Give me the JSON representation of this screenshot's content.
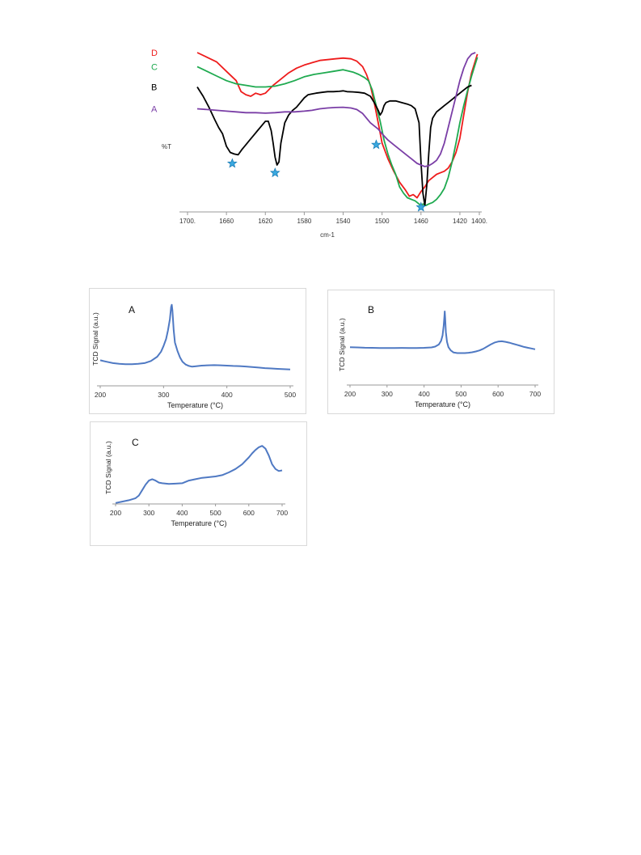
{
  "chart_data": [
    {
      "type": "line",
      "xlabel": "cm-1",
      "ylabel": "%T",
      "xlim": [
        1700,
        1400
      ],
      "x_ticks": [
        "1700.",
        "1660",
        "1620",
        "1580",
        "1540",
        "1500",
        "1460",
        "1420",
        "1400."
      ],
      "x_tick_values": [
        1700,
        1660,
        1620,
        1580,
        1540,
        1500,
        1460,
        1420,
        1400
      ],
      "y_range": [
        0,
        100
      ],
      "grid": false,
      "legend": "left labels",
      "series": [
        {
          "name": "D",
          "color": "#ee1c1c",
          "x": [
            1690,
            1680,
            1670,
            1660,
            1650,
            1645,
            1640,
            1635,
            1630,
            1625,
            1620,
            1612,
            1604,
            1596,
            1588,
            1580,
            1572,
            1564,
            1556,
            1548,
            1540,
            1532,
            1526,
            1520,
            1516,
            1512,
            1508,
            1504,
            1500,
            1494,
            1488,
            1482,
            1476,
            1472,
            1468,
            1464,
            1460,
            1456,
            1452,
            1448,
            1444,
            1440,
            1436,
            1432,
            1428,
            1424,
            1420,
            1416,
            1412,
            1408,
            1404,
            1402
          ],
          "y": [
            100,
            97,
            94,
            88,
            82,
            75,
            73,
            72,
            74,
            73,
            74,
            79,
            83,
            87,
            90,
            92,
            93.5,
            95,
            95.5,
            96,
            96.5,
            96,
            94.5,
            91,
            86,
            79,
            68,
            55,
            42,
            32,
            24,
            17,
            12,
            8,
            9,
            7,
            11,
            14,
            18,
            20,
            22,
            23,
            24,
            26,
            30,
            36,
            45,
            60,
            75,
            87,
            95,
            99
          ]
        },
        {
          "name": "C",
          "color": "#1faa50",
          "x": [
            1690,
            1680,
            1670,
            1660,
            1650,
            1640,
            1630,
            1620,
            1610,
            1600,
            1590,
            1580,
            1570,
            1560,
            1550,
            1540,
            1530,
            1524,
            1518,
            1514,
            1510,
            1506,
            1502,
            1498,
            1494,
            1490,
            1486,
            1482,
            1478,
            1474,
            1470,
            1466,
            1462,
            1460,
            1458,
            1455,
            1452,
            1448,
            1444,
            1440,
            1436,
            1432,
            1428,
            1424,
            1420,
            1416,
            1412,
            1408,
            1404,
            1402
          ],
          "y": [
            91,
            88,
            85,
            82,
            80,
            79,
            78,
            78,
            78.5,
            80,
            82,
            84.5,
            86,
            87,
            88,
            89,
            87.5,
            86,
            84,
            82,
            76,
            66,
            56,
            44,
            35,
            28,
            22,
            14,
            10,
            7,
            6,
            5,
            3,
            2,
            3,
            2,
            3,
            4,
            6,
            9,
            13,
            20,
            30,
            42,
            55,
            66,
            76,
            85,
            93,
            97
          ]
        },
        {
          "name": "B",
          "color": "#000000",
          "x": [
            1690,
            1684,
            1678,
            1672,
            1668,
            1664,
            1660,
            1656,
            1652,
            1648,
            1644,
            1640,
            1636,
            1632,
            1628,
            1624,
            1620,
            1617,
            1614,
            1612,
            1610,
            1608,
            1606,
            1604,
            1600,
            1596,
            1592,
            1588,
            1584,
            1580,
            1576,
            1572,
            1568,
            1562,
            1556,
            1550,
            1544,
            1540,
            1536,
            1530,
            1524,
            1518,
            1512,
            1508,
            1504,
            1502,
            1500,
            1498,
            1496,
            1492,
            1486,
            1480,
            1474,
            1470,
            1466,
            1462,
            1460,
            1458,
            1456,
            1454,
            1452,
            1450,
            1448,
            1446,
            1444,
            1440,
            1436,
            1432,
            1428,
            1424,
            1420,
            1416,
            1412,
            1408
          ],
          "y": [
            78,
            72,
            65,
            57,
            52,
            48,
            40,
            36,
            35,
            34.5,
            38,
            41,
            44,
            47,
            50,
            53,
            56,
            56,
            50,
            42,
            33,
            28,
            30,
            42,
            55,
            60,
            63,
            65,
            68,
            71,
            73,
            73.5,
            74,
            74.5,
            75,
            75,
            75.2,
            75.5,
            75,
            74.8,
            74.5,
            74,
            72,
            68,
            63,
            60,
            62,
            66,
            68,
            69,
            69,
            68,
            67,
            66,
            64,
            55,
            30,
            10,
            2,
            15,
            35,
            52,
            58,
            60,
            62,
            64,
            66,
            68,
            70,
            72,
            74,
            76,
            78,
            79
          ]
        },
        {
          "name": "A",
          "color": "#7a3ea6",
          "x": [
            1690,
            1680,
            1670,
            1660,
            1650,
            1640,
            1630,
            1620,
            1610,
            1600,
            1590,
            1580,
            1572,
            1564,
            1556,
            1548,
            1540,
            1532,
            1526,
            1520,
            1516,
            1512,
            1508,
            1504,
            1500,
            1494,
            1488,
            1482,
            1476,
            1470,
            1464,
            1460,
            1456,
            1452,
            1448,
            1444,
            1440,
            1436,
            1432,
            1428,
            1424,
            1420,
            1416,
            1412,
            1408,
            1404
          ],
          "y": [
            64,
            63.5,
            63,
            62.5,
            62,
            61.5,
            61.5,
            61.2,
            61.5,
            62,
            62,
            62.5,
            63,
            64,
            64.5,
            64.8,
            65,
            64.5,
            63.5,
            61,
            58,
            55,
            53,
            51,
            48,
            44,
            41,
            38,
            35,
            32,
            29,
            28,
            27,
            27.5,
            29,
            31,
            35,
            42,
            52,
            62,
            72,
            82,
            90,
            96,
            99,
            100
          ]
        }
      ],
      "annotations": {
        "star_markers_x": [
          1654,
          1610,
          1506,
          1460
        ]
      }
    },
    {
      "type": "line",
      "panel_label": "A",
      "xlabel": "Temperature (°C)",
      "ylabel": "TCD Signal (a.u.)",
      "xlim": [
        200,
        500
      ],
      "x_ticks": [
        "200",
        "300",
        "400",
        "500"
      ],
      "x_tick_values": [
        200,
        300,
        400,
        500
      ],
      "y_range": [
        0,
        100
      ],
      "series": [
        {
          "name": "",
          "color": "#4f79c3",
          "x": [
            200,
            210,
            220,
            230,
            240,
            250,
            260,
            270,
            280,
            290,
            296,
            300,
            304,
            307,
            310,
            312,
            313,
            314,
            316,
            318,
            322,
            326,
            330,
            335,
            340,
            345,
            350,
            360,
            370,
            380,
            390,
            400,
            410,
            420,
            430,
            440,
            450,
            460,
            470,
            480,
            490,
            500
          ],
          "y": [
            20,
            18,
            16,
            15,
            14.5,
            14.5,
            15,
            16,
            19,
            25,
            32,
            40,
            50,
            62,
            78,
            95,
            98,
            90,
            62,
            45,
            33,
            24,
            18,
            14,
            12,
            11,
            11.5,
            12.5,
            13,
            13.2,
            13,
            12.5,
            12,
            11.8,
            11.2,
            10.5,
            9.8,
            9,
            8.5,
            8,
            7.5,
            7
          ]
        }
      ]
    },
    {
      "type": "line",
      "panel_label": "B",
      "xlabel": "Temperature (°C)",
      "ylabel": "TCD Signal (a.u.)",
      "xlim": [
        200,
        700
      ],
      "x_ticks": [
        "200",
        "300",
        "400",
        "500",
        "600",
        "700"
      ],
      "x_tick_values": [
        200,
        300,
        400,
        500,
        600,
        700
      ],
      "y_range": [
        0,
        100
      ],
      "series": [
        {
          "name": "",
          "color": "#4f79c3",
          "x": [
            200,
            220,
            240,
            260,
            280,
            300,
            320,
            340,
            360,
            380,
            400,
            420,
            430,
            440,
            446,
            450,
            453,
            455,
            456,
            457,
            459,
            462,
            466,
            472,
            480,
            490,
            500,
            510,
            520,
            530,
            540,
            550,
            560,
            570,
            580,
            590,
            600,
            610,
            620,
            630,
            640,
            650,
            660,
            670,
            680,
            690,
            700
          ],
          "y": [
            30,
            29.5,
            29,
            28.8,
            28.5,
            28.4,
            28.5,
            28.6,
            28.5,
            28.5,
            28.8,
            29.5,
            31,
            35,
            42,
            52,
            70,
            88,
            97,
            85,
            58,
            40,
            30,
            24,
            20,
            19,
            19,
            19,
            19.5,
            20.5,
            22,
            24,
            27,
            31,
            35,
            38.5,
            40.5,
            41,
            40,
            38.5,
            36.5,
            34.5,
            32.5,
            30.5,
            29,
            27.5,
            26
          ]
        }
      ]
    },
    {
      "type": "line",
      "panel_label": "C",
      "xlabel": "Temperature (°C)",
      "ylabel": "TCD Signal (a.u.)",
      "xlim": [
        200,
        700
      ],
      "x_ticks": [
        "200",
        "300",
        "400",
        "500",
        "600",
        "700"
      ],
      "x_tick_values": [
        200,
        300,
        400,
        500,
        600,
        700
      ],
      "y_range": [
        0,
        100
      ],
      "series": [
        {
          "name": "",
          "color": "#4f79c3",
          "x": [
            200,
            220,
            240,
            260,
            270,
            280,
            290,
            300,
            310,
            320,
            330,
            340,
            360,
            380,
            400,
            420,
            440,
            460,
            480,
            500,
            520,
            540,
            560,
            580,
            600,
            610,
            620,
            630,
            640,
            650,
            660,
            670,
            680,
            690,
            700
          ],
          "y": [
            5,
            7,
            9,
            12,
            16,
            24,
            32,
            38,
            40,
            38,
            35,
            34,
            33,
            33.5,
            34,
            38,
            40,
            42,
            43,
            44,
            46,
            50,
            55,
            62,
            72,
            78,
            83,
            87,
            89,
            85,
            75,
            62,
            55,
            52,
            53
          ]
        }
      ]
    }
  ]
}
